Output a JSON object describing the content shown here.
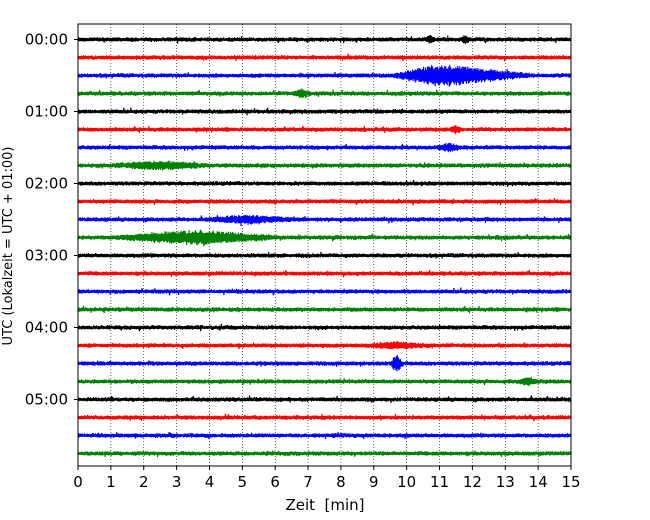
{
  "chart_data": {
    "type": "line",
    "title": "",
    "xlabel": "Zeit  [min]",
    "ylabel": "UTC (Lokalzeit = UTC + 01:00)",
    "xlim": [
      0,
      15
    ],
    "x_ticks": [
      0,
      1,
      2,
      3,
      4,
      5,
      6,
      7,
      8,
      9,
      10,
      11,
      12,
      13,
      14,
      15
    ],
    "x_tick_labels": [
      "0",
      "1",
      "2",
      "3",
      "4",
      "5",
      "6",
      "7",
      "8",
      "9",
      "10",
      "11",
      "12",
      "13",
      "14",
      "15"
    ],
    "y_tick_labels": [
      {
        "label": "00:00",
        "trace": 0
      },
      {
        "label": "01:00",
        "trace": 4
      },
      {
        "label": "02:00",
        "trace": 8
      },
      {
        "label": "03:00",
        "trace": 12
      },
      {
        "label": "04:00",
        "trace": 16
      },
      {
        "label": "05:00",
        "trace": 20
      }
    ],
    "trace_interval_minutes": 15,
    "trace_count": 24,
    "color_cycle": [
      "#000000",
      "#ff0000",
      "#0000ff",
      "#008000"
    ],
    "vertical_grid": true,
    "grid_style": "dotted",
    "events": [
      {
        "trace": 0,
        "minute": 10.7,
        "amplitude": 1.3,
        "duration": 0.15
      },
      {
        "trace": 0,
        "minute": 11.8,
        "amplitude": 1.4,
        "duration": 0.15
      },
      {
        "trace": 2,
        "minute": 11.7,
        "amplitude": 3.2,
        "duration": 2.2
      },
      {
        "trace": 2,
        "minute": 10.8,
        "amplitude": 2.0,
        "duration": 1.2
      },
      {
        "trace": 3,
        "minute": 6.8,
        "amplitude": 1.4,
        "duration": 0.3
      },
      {
        "trace": 5,
        "minute": 11.5,
        "amplitude": 1.3,
        "duration": 0.2
      },
      {
        "trace": 6,
        "minute": 11.3,
        "amplitude": 1.5,
        "duration": 0.4
      },
      {
        "trace": 7,
        "minute": 2.5,
        "amplitude": 1.5,
        "duration": 1.6
      },
      {
        "trace": 10,
        "minute": 5.2,
        "amplitude": 1.4,
        "duration": 1.4
      },
      {
        "trace": 11,
        "minute": 3.6,
        "amplitude": 2.6,
        "duration": 2.6
      },
      {
        "trace": 17,
        "minute": 9.7,
        "amplitude": 1.2,
        "duration": 1.0
      },
      {
        "trace": 18,
        "minute": 9.7,
        "amplitude": 3.5,
        "duration": 0.2
      },
      {
        "trace": 19,
        "minute": 13.7,
        "amplitude": 1.6,
        "duration": 0.3
      }
    ]
  }
}
